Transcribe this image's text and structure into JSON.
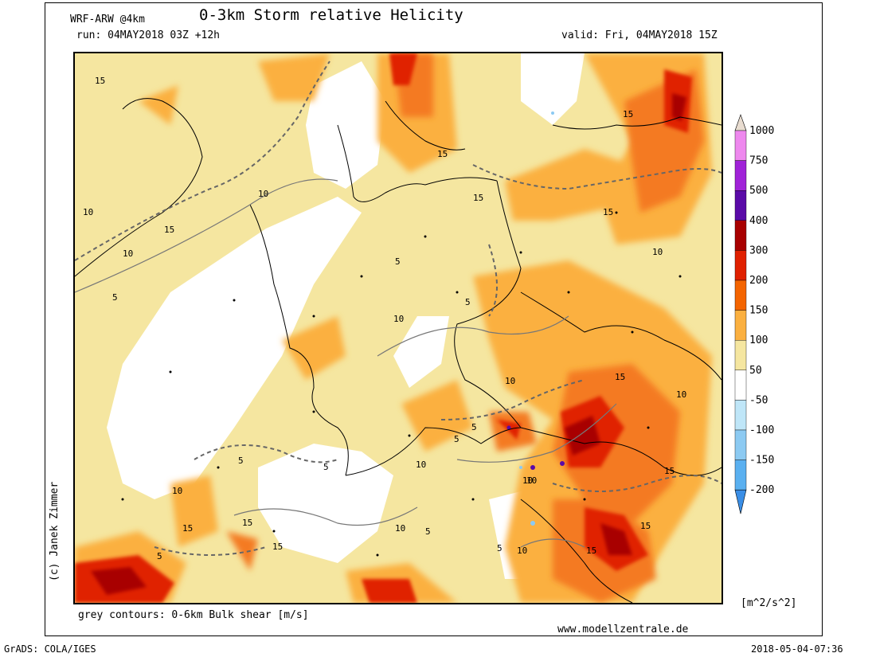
{
  "header": {
    "model": "WRF-ARW @4km",
    "title": "0-3km Storm relative Helicity",
    "run": "run: 04MAY2018 03Z +12h",
    "valid": "valid: Fri, 04MAY2018 15Z"
  },
  "footer": {
    "contour_note": "grey contours: 0-6km Bulk shear [m/s]",
    "website": "www.modellzentrale.de",
    "grads": "GrADS: COLA/IGES",
    "timestamp": "2018-05-04-07:36",
    "credit": "(c) Janek Zimmer"
  },
  "colorbar": {
    "unit": "[m^2/s^2]",
    "labels": [
      "1000",
      "750",
      "500",
      "400",
      "300",
      "200",
      "150",
      "100",
      "50",
      "-50",
      "-100",
      "-150",
      "-200"
    ],
    "colors": [
      "#e8dcd0",
      "#ee88ee",
      "#a022d8",
      "#5a0aa8",
      "#a80000",
      "#e02000",
      "#f46400",
      "#fbb040",
      "#f5e6a0",
      "#ffffff",
      "#bfe6f8",
      "#8ccaf2",
      "#5ab0f0",
      "#3a8ee6"
    ]
  },
  "contour_labels": [
    "15",
    "10",
    "15",
    "10",
    "5",
    "10",
    "15",
    "15",
    "15",
    "15",
    "10",
    "5",
    "5",
    "10",
    "10",
    "15",
    "10",
    "5",
    "5",
    "10",
    "15",
    "10",
    "5",
    "5",
    "15",
    "15",
    "10",
    "15",
    "10",
    "5",
    "15",
    "5",
    "5",
    "10",
    "15",
    "10"
  ]
}
